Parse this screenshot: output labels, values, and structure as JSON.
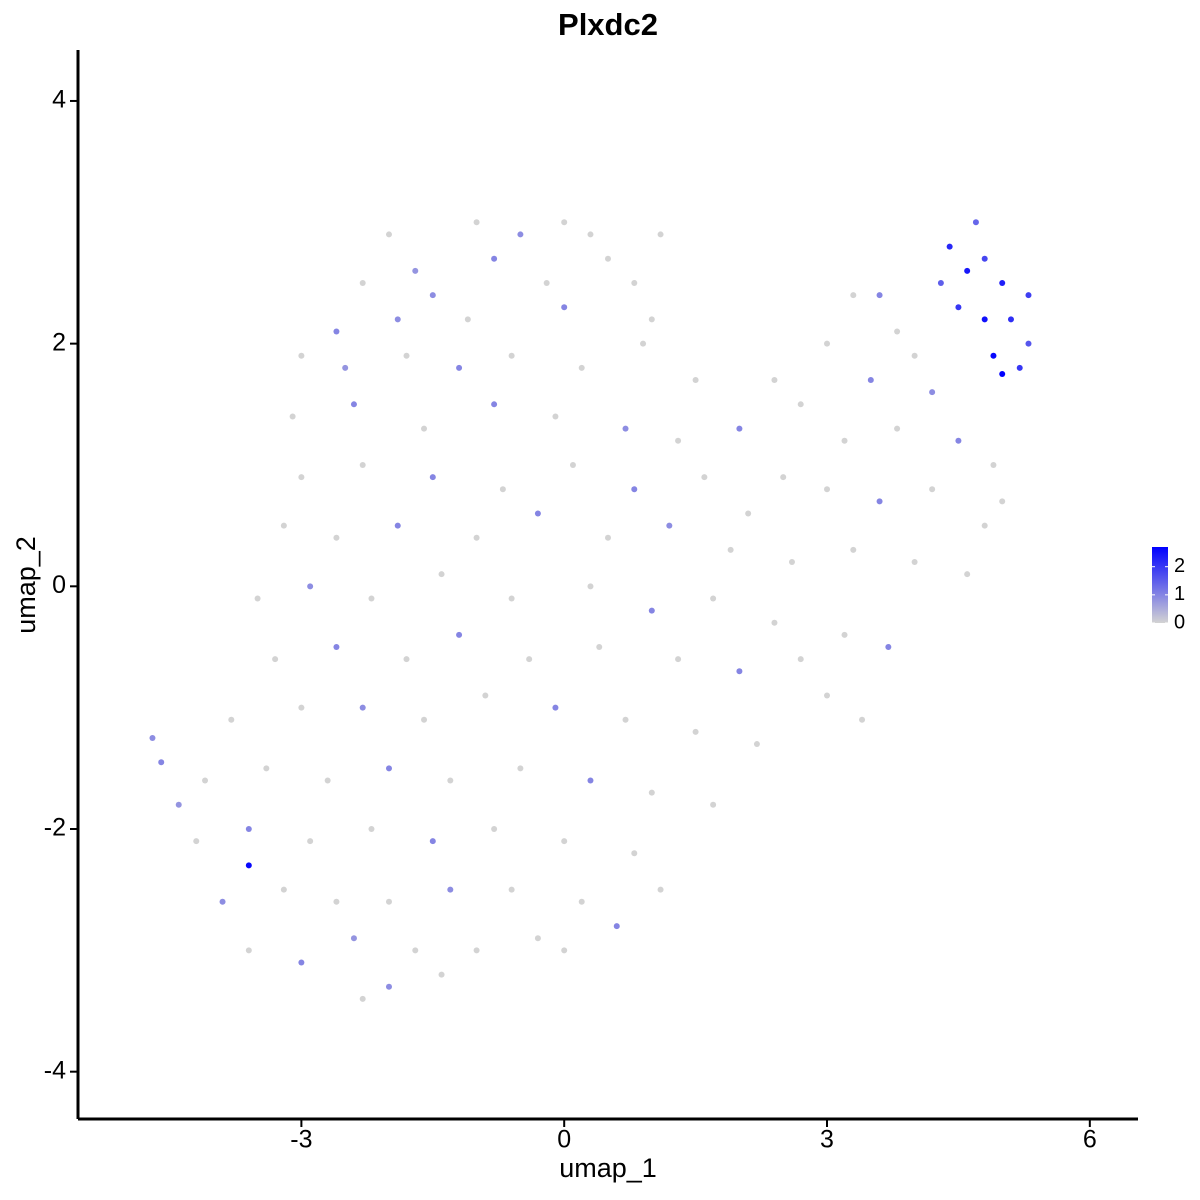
{
  "chart_data": {
    "type": "scatter",
    "title": "Plxdc2",
    "x_label": "umap_1",
    "y_label": "umap_2",
    "xlim": [
      -5.55,
      6.55
    ],
    "ylim": [
      -4.39,
      4.42
    ],
    "xticks": [
      -3,
      0,
      3,
      6
    ],
    "yticks": [
      -4,
      -2,
      0,
      2,
      4
    ],
    "color_low": "#d3d3d3",
    "color_high": "#0000ff",
    "color_lim": [
      0,
      2.7
    ],
    "color_ticks": [
      0,
      1,
      2
    ],
    "x": [
      -2,
      -1,
      -0.5,
      0,
      0.3,
      1.1,
      -1.7,
      -0.8,
      0.5,
      -2.3,
      -1.5,
      -0.2,
      0.8,
      -2.6,
      -1.9,
      -1.1,
      0,
      1.0,
      -3,
      -2.5,
      -1.8,
      -1.2,
      -0.6,
      0.2,
      0.9,
      1.5,
      -3.1,
      -2.4,
      -1.6,
      -0.8,
      -0.1,
      0.7,
      1.3,
      2.0,
      2.4,
      2.7,
      3.0,
      3.3,
      3.6,
      3.8,
      3.5,
      4.0,
      4.2,
      3.2,
      3.8,
      4.5,
      4.9,
      2.5,
      3.0,
      3.6,
      4.2,
      4.8,
      5.0,
      3.3,
      4.0,
      4.6,
      3.2,
      3.7,
      3.0,
      3.4,
      4.4,
      4.6,
      4.8,
      5.0,
      4.5,
      4.8,
      5.1,
      5.3,
      4.9,
      5.2,
      5.0,
      4.3,
      4.7,
      5.3,
      -3.0,
      -2.3,
      -1.5,
      -0.7,
      0.1,
      0.8,
      1.6,
      2.1,
      -3.2,
      -2.6,
      -1.9,
      -1.0,
      -0.3,
      0.5,
      1.2,
      1.9,
      2.6,
      -3.5,
      -2.9,
      -2.2,
      -1.4,
      -0.6,
      0.3,
      1.0,
      1.7,
      2.4,
      -3.3,
      -2.6,
      -1.8,
      -1.2,
      -0.4,
      0.4,
      1.3,
      2.0,
      2.7,
      -3.8,
      -3.0,
      -2.3,
      -1.6,
      -0.9,
      -0.1,
      0.7,
      1.5,
      2.2,
      -4.7,
      -4.6,
      -4.1,
      -3.4,
      -2.7,
      -2.0,
      -1.3,
      -0.5,
      0.3,
      1.0,
      1.7,
      -4.4,
      -4.2,
      -3.6,
      -2.9,
      -2.2,
      -1.5,
      -0.8,
      0,
      0.8,
      1.1,
      -3.6,
      -3.9,
      -3.2,
      -2.6,
      -2.0,
      -1.3,
      -0.6,
      0.2,
      0.6,
      -3.6,
      -3.0,
      -2.4,
      -1.7,
      -1.0,
      -0.3,
      0,
      -2.3,
      -2.0,
      -1.4
    ],
    "y": [
      2.9,
      3.0,
      2.9,
      3.0,
      2.9,
      2.9,
      2.6,
      2.7,
      2.7,
      2.5,
      2.4,
      2.5,
      2.5,
      2.1,
      2.2,
      2.2,
      2.3,
      2.2,
      1.9,
      1.8,
      1.9,
      1.8,
      1.9,
      1.8,
      2.0,
      1.7,
      1.4,
      1.5,
      1.3,
      1.5,
      1.4,
      1.3,
      1.2,
      1.3,
      1.7,
      1.5,
      2.0,
      2.4,
      2.4,
      2.1,
      1.7,
      1.9,
      1.6,
      1.2,
      1.3,
      1.2,
      1.0,
      0.9,
      0.8,
      0.7,
      0.8,
      0.5,
      0.7,
      0.3,
      0.2,
      0.1,
      -0.4,
      -0.5,
      -0.9,
      -1.1,
      2.8,
      2.6,
      2.7,
      2.5,
      2.3,
      2.2,
      2.2,
      2.4,
      1.9,
      1.8,
      1.75,
      2.5,
      3.0,
      2.0,
      0.9,
      1.0,
      0.9,
      0.8,
      1.0,
      0.8,
      0.9,
      0.6,
      0.5,
      0.4,
      0.5,
      0.4,
      0.6,
      0.4,
      0.5,
      0.3,
      0.2,
      -0.1,
      0,
      -0.1,
      0.1,
      -0.1,
      0,
      -0.2,
      -0.1,
      -0.3,
      -0.6,
      -0.5,
      -0.6,
      -0.4,
      -0.6,
      -0.5,
      -0.6,
      -0.7,
      -0.6,
      -1.1,
      -1.0,
      -1.0,
      -1.1,
      -0.9,
      -1.0,
      -1.1,
      -1.2,
      -1.3,
      -1.25,
      -1.45,
      -1.6,
      -1.5,
      -1.6,
      -1.5,
      -1.6,
      -1.5,
      -1.6,
      -1.7,
      -1.8,
      -1.8,
      -2.1,
      -2.0,
      -2.1,
      -2.0,
      -2.1,
      -2.0,
      -2.1,
      -2.2,
      -2.5,
      -2.3,
      -2.6,
      -2.5,
      -2.6,
      -2.6,
      -2.5,
      -2.5,
      -2.6,
      -2.8,
      -3.0,
      -3.1,
      -2.9,
      -3.0,
      -3.0,
      -2.9,
      -3.0,
      -3.4,
      -3.3,
      -3.2
    ],
    "values": [
      0,
      0,
      0.9,
      0,
      0,
      0,
      0.8,
      1,
      0,
      0,
      0.9,
      0,
      0,
      1,
      0.9,
      0,
      1,
      0,
      0,
      0.8,
      0,
      1,
      0,
      0,
      0,
      0,
      0,
      1,
      0,
      1,
      0,
      0.9,
      0,
      1,
      0,
      0,
      0,
      0,
      1,
      0,
      1,
      0,
      0.9,
      0,
      0,
      1,
      0,
      0,
      0,
      1,
      0,
      0,
      0,
      0,
      0,
      0,
      0,
      1,
      0,
      0,
      2.2,
      2.4,
      1.8,
      2.3,
      2.0,
      2.5,
      2.1,
      1.9,
      2.6,
      2.0,
      2.7,
      1.5,
      1.4,
      1.6,
      0,
      0,
      1,
      0,
      0,
      1,
      0,
      0,
      0,
      0,
      1,
      0,
      1,
      0,
      0.9,
      0,
      0,
      0,
      0.9,
      0,
      0,
      0,
      0,
      1,
      0,
      0,
      0,
      1,
      0,
      1,
      0,
      0,
      0,
      1,
      0,
      0,
      0,
      0.9,
      0,
      0,
      1,
      0,
      0,
      0,
      0.9,
      1,
      0,
      0,
      0,
      1,
      0,
      0,
      1,
      0,
      0,
      0.8,
      0,
      1,
      0,
      0,
      1,
      0,
      0,
      0,
      0,
      2.6,
      0.9,
      0,
      0,
      0,
      0.9,
      0,
      0,
      1,
      0,
      1,
      0.8,
      0,
      0,
      0,
      0,
      0,
      0.9,
      0
    ]
  }
}
